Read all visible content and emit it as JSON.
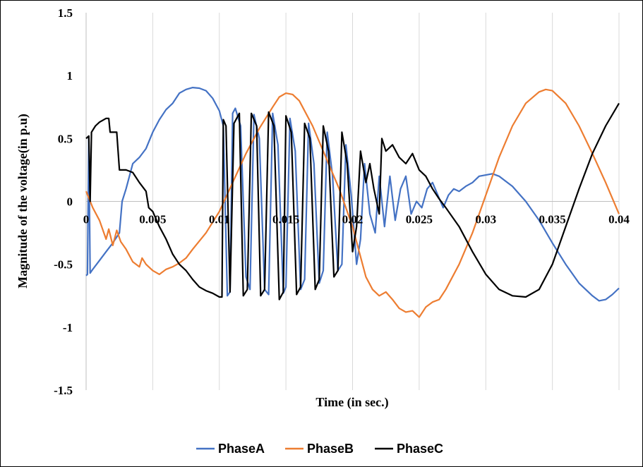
{
  "chart_data": {
    "type": "line",
    "title": "",
    "xlabel": "Time  (in sec.)",
    "ylabel": "Magnitude  of the voltage(in p.u)",
    "xlim": [
      0,
      0.04
    ],
    "ylim": [
      -1.5,
      1.5
    ],
    "x_ticks": [
      "0",
      "0.005",
      "0.01",
      "0.015",
      "0.02",
      "0.025",
      "0.03",
      "0.035",
      "0.04"
    ],
    "y_ticks": [
      "1.5",
      "1",
      "0.5",
      "0",
      "-0.5",
      "-1",
      "-1.5"
    ],
    "x_tick_values": [
      0,
      0.005,
      0.01,
      0.015,
      0.02,
      0.025,
      0.03,
      0.035,
      0.04
    ],
    "y_tick_values": [
      1.5,
      1,
      0.5,
      0,
      -0.5,
      -1,
      -1.5
    ],
    "grid": "vertical",
    "legend": "bottom",
    "series": [
      {
        "name": "PhaseA",
        "color": "#4472C4",
        "points": [
          [
            0,
            -0.59
          ],
          [
            0.0001,
            -0.58
          ],
          [
            0.0002,
            0.5
          ],
          [
            0.0003,
            -0.57
          ],
          [
            0.0005,
            -0.54
          ],
          [
            0.001,
            -0.47
          ],
          [
            0.0015,
            -0.4
          ],
          [
            0.002,
            -0.33
          ],
          [
            0.0025,
            -0.25
          ],
          [
            0.0027,
            0.0
          ],
          [
            0.003,
            0.1
          ],
          [
            0.0035,
            0.3
          ],
          [
            0.004,
            0.35
          ],
          [
            0.0045,
            0.42
          ],
          [
            0.005,
            0.55
          ],
          [
            0.0055,
            0.65
          ],
          [
            0.006,
            0.73
          ],
          [
            0.0065,
            0.78
          ],
          [
            0.007,
            0.86
          ],
          [
            0.0075,
            0.89
          ],
          [
            0.008,
            0.905
          ],
          [
            0.0085,
            0.9
          ],
          [
            0.009,
            0.88
          ],
          [
            0.0095,
            0.82
          ],
          [
            0.01,
            0.72
          ],
          [
            0.0103,
            0.6
          ],
          [
            0.0106,
            -0.75
          ],
          [
            0.0108,
            -0.72
          ],
          [
            0.011,
            0.7
          ],
          [
            0.0112,
            0.74
          ],
          [
            0.0116,
            0.6
          ],
          [
            0.012,
            -0.6
          ],
          [
            0.0123,
            -0.7
          ],
          [
            0.0126,
            0.69
          ],
          [
            0.013,
            0.5
          ],
          [
            0.0134,
            -0.7
          ],
          [
            0.0137,
            -0.74
          ],
          [
            0.014,
            0.7
          ],
          [
            0.0144,
            0.45
          ],
          [
            0.0148,
            -0.73
          ],
          [
            0.015,
            -0.68
          ],
          [
            0.0153,
            0.66
          ],
          [
            0.0157,
            0.4
          ],
          [
            0.0161,
            -0.7
          ],
          [
            0.0164,
            -0.62
          ],
          [
            0.0167,
            0.62
          ],
          [
            0.0171,
            0.3
          ],
          [
            0.0175,
            -0.65
          ],
          [
            0.0178,
            -0.55
          ],
          [
            0.0181,
            0.55
          ],
          [
            0.0185,
            0.2
          ],
          [
            0.0189,
            -0.55
          ],
          [
            0.0192,
            -0.5
          ],
          [
            0.0195,
            0.45
          ],
          [
            0.0199,
            0.05
          ],
          [
            0.0203,
            -0.5
          ],
          [
            0.0206,
            -0.3
          ],
          [
            0.0209,
            0.3
          ],
          [
            0.0213,
            -0.1
          ],
          [
            0.0217,
            -0.25
          ],
          [
            0.022,
            0.2
          ],
          [
            0.0224,
            -0.2
          ],
          [
            0.0228,
            0.2
          ],
          [
            0.0232,
            -0.15
          ],
          [
            0.0236,
            0.1
          ],
          [
            0.024,
            0.2
          ],
          [
            0.0244,
            -0.1
          ],
          [
            0.0248,
            0.0
          ],
          [
            0.0252,
            -0.05
          ],
          [
            0.0256,
            0.1
          ],
          [
            0.026,
            0.15
          ],
          [
            0.0264,
            0.05
          ],
          [
            0.0268,
            -0.05
          ],
          [
            0.0272,
            0.05
          ],
          [
            0.0276,
            0.1
          ],
          [
            0.028,
            0.08
          ],
          [
            0.0285,
            0.12
          ],
          [
            0.029,
            0.15
          ],
          [
            0.0295,
            0.2
          ],
          [
            0.03,
            0.21
          ],
          [
            0.0305,
            0.22
          ],
          [
            0.031,
            0.2
          ],
          [
            0.032,
            0.12
          ],
          [
            0.033,
            0.0
          ],
          [
            0.034,
            -0.15
          ],
          [
            0.035,
            -0.33
          ],
          [
            0.036,
            -0.5
          ],
          [
            0.037,
            -0.65
          ],
          [
            0.038,
            -0.75
          ],
          [
            0.0385,
            -0.79
          ],
          [
            0.039,
            -0.78
          ],
          [
            0.0395,
            -0.74
          ],
          [
            0.04,
            -0.69
          ]
        ]
      },
      {
        "name": "PhaseB",
        "color": "#ED7D31",
        "points": [
          [
            0,
            0.08
          ],
          [
            0.0005,
            -0.05
          ],
          [
            0.001,
            -0.15
          ],
          [
            0.0015,
            -0.3
          ],
          [
            0.0017,
            -0.22
          ],
          [
            0.002,
            -0.35
          ],
          [
            0.0023,
            -0.23
          ],
          [
            0.0026,
            -0.32
          ],
          [
            0.003,
            -0.38
          ],
          [
            0.0035,
            -0.48
          ],
          [
            0.004,
            -0.52
          ],
          [
            0.0042,
            -0.45
          ],
          [
            0.0045,
            -0.5
          ],
          [
            0.005,
            -0.55
          ],
          [
            0.0055,
            -0.58
          ],
          [
            0.006,
            -0.54
          ],
          [
            0.0065,
            -0.52
          ],
          [
            0.007,
            -0.49
          ],
          [
            0.0075,
            -0.45
          ],
          [
            0.008,
            -0.38
          ],
          [
            0.009,
            -0.25
          ],
          [
            0.01,
            -0.08
          ],
          [
            0.011,
            0.15
          ],
          [
            0.012,
            0.38
          ],
          [
            0.013,
            0.58
          ],
          [
            0.014,
            0.75
          ],
          [
            0.0145,
            0.83
          ],
          [
            0.015,
            0.86
          ],
          [
            0.0155,
            0.85
          ],
          [
            0.016,
            0.8
          ],
          [
            0.017,
            0.6
          ],
          [
            0.018,
            0.35
          ],
          [
            0.019,
            0.1
          ],
          [
            0.02,
            -0.2
          ],
          [
            0.0205,
            -0.4
          ],
          [
            0.021,
            -0.6
          ],
          [
            0.0215,
            -0.7
          ],
          [
            0.022,
            -0.75
          ],
          [
            0.0225,
            -0.72
          ],
          [
            0.023,
            -0.78
          ],
          [
            0.0235,
            -0.85
          ],
          [
            0.024,
            -0.88
          ],
          [
            0.0245,
            -0.87
          ],
          [
            0.025,
            -0.92
          ],
          [
            0.0255,
            -0.84
          ],
          [
            0.026,
            -0.8
          ],
          [
            0.0265,
            -0.78
          ],
          [
            0.027,
            -0.7
          ],
          [
            0.028,
            -0.5
          ],
          [
            0.029,
            -0.25
          ],
          [
            0.03,
            0.05
          ],
          [
            0.031,
            0.35
          ],
          [
            0.032,
            0.6
          ],
          [
            0.033,
            0.78
          ],
          [
            0.034,
            0.87
          ],
          [
            0.0345,
            0.89
          ],
          [
            0.035,
            0.88
          ],
          [
            0.036,
            0.78
          ],
          [
            0.037,
            0.6
          ],
          [
            0.038,
            0.38
          ],
          [
            0.039,
            0.15
          ],
          [
            0.04,
            -0.1
          ]
        ]
      },
      {
        "name": "PhaseC",
        "color": "#000000",
        "points": [
          [
            0,
            0.5
          ],
          [
            0.0002,
            0.52
          ],
          [
            0.0003,
            0.0
          ],
          [
            0.0004,
            0.55
          ],
          [
            0.0007,
            0.6
          ],
          [
            0.001,
            0.63
          ],
          [
            0.0015,
            0.66
          ],
          [
            0.0017,
            0.66
          ],
          [
            0.0018,
            0.55
          ],
          [
            0.0023,
            0.55
          ],
          [
            0.0025,
            0.25
          ],
          [
            0.003,
            0.25
          ],
          [
            0.0035,
            0.23
          ],
          [
            0.004,
            0.15
          ],
          [
            0.0045,
            0.08
          ],
          [
            0.0047,
            -0.05
          ],
          [
            0.005,
            -0.08
          ],
          [
            0.0055,
            -0.2
          ],
          [
            0.006,
            -0.3
          ],
          [
            0.0065,
            -0.42
          ],
          [
            0.007,
            -0.5
          ],
          [
            0.0075,
            -0.55
          ],
          [
            0.008,
            -0.62
          ],
          [
            0.0085,
            -0.68
          ],
          [
            0.009,
            -0.71
          ],
          [
            0.0095,
            -0.73
          ],
          [
            0.01,
            -0.76
          ],
          [
            0.0102,
            -0.76
          ],
          [
            0.0103,
            0.65
          ],
          [
            0.0105,
            0.6
          ],
          [
            0.0108,
            -0.72
          ],
          [
            0.0111,
            0.62
          ],
          [
            0.0115,
            0.7
          ],
          [
            0.0118,
            -0.75
          ],
          [
            0.0121,
            -0.7
          ],
          [
            0.0124,
            0.7
          ],
          [
            0.0128,
            0.6
          ],
          [
            0.0131,
            -0.75
          ],
          [
            0.0134,
            -0.7
          ],
          [
            0.0137,
            0.71
          ],
          [
            0.0141,
            0.6
          ],
          [
            0.0145,
            -0.78
          ],
          [
            0.0148,
            -0.72
          ],
          [
            0.015,
            0.68
          ],
          [
            0.0154,
            0.55
          ],
          [
            0.0158,
            -0.74
          ],
          [
            0.0161,
            -0.68
          ],
          [
            0.0164,
            0.62
          ],
          [
            0.0168,
            0.5
          ],
          [
            0.0172,
            -0.7
          ],
          [
            0.0175,
            -0.62
          ],
          [
            0.0178,
            0.6
          ],
          [
            0.0182,
            0.4
          ],
          [
            0.0186,
            -0.6
          ],
          [
            0.0189,
            -0.55
          ],
          [
            0.0192,
            0.55
          ],
          [
            0.0196,
            0.3
          ],
          [
            0.02,
            -0.4
          ],
          [
            0.0203,
            -0.2
          ],
          [
            0.0206,
            0.4
          ],
          [
            0.021,
            0.15
          ],
          [
            0.0213,
            0.3
          ],
          [
            0.0216,
            0.1
          ],
          [
            0.022,
            -0.1
          ],
          [
            0.0222,
            0.5
          ],
          [
            0.0225,
            0.4
          ],
          [
            0.023,
            0.45
          ],
          [
            0.0235,
            0.35
          ],
          [
            0.024,
            0.3
          ],
          [
            0.0245,
            0.38
          ],
          [
            0.025,
            0.25
          ],
          [
            0.0255,
            0.2
          ],
          [
            0.026,
            0.1
          ],
          [
            0.0265,
            0.02
          ],
          [
            0.027,
            -0.05
          ],
          [
            0.028,
            -0.2
          ],
          [
            0.029,
            -0.4
          ],
          [
            0.03,
            -0.58
          ],
          [
            0.031,
            -0.7
          ],
          [
            0.032,
            -0.75
          ],
          [
            0.033,
            -0.76
          ],
          [
            0.034,
            -0.7
          ],
          [
            0.035,
            -0.5
          ],
          [
            0.036,
            -0.2
          ],
          [
            0.037,
            0.1
          ],
          [
            0.038,
            0.38
          ],
          [
            0.039,
            0.6
          ],
          [
            0.04,
            0.78
          ]
        ]
      }
    ]
  }
}
